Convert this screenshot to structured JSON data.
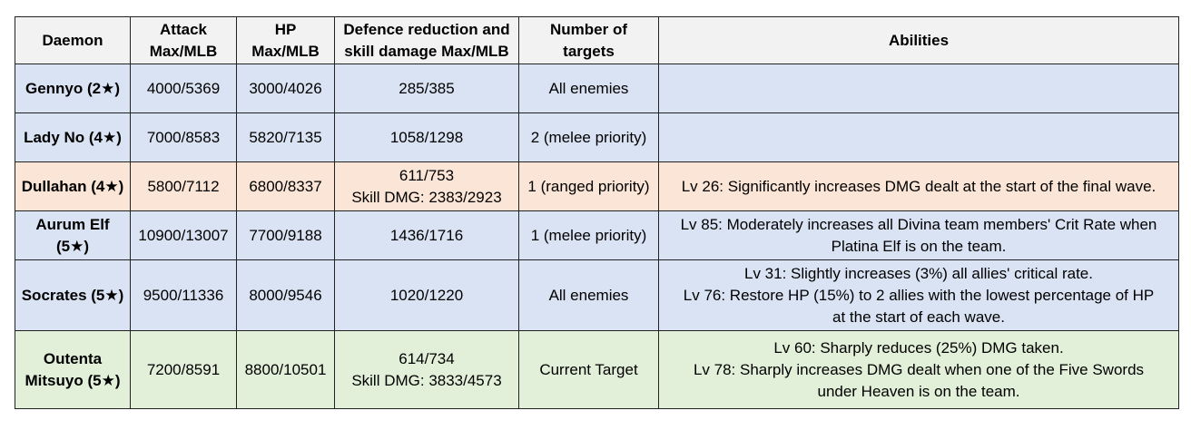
{
  "table": {
    "headers": [
      "Daemon",
      "Attack\nMax/MLB",
      "HP\nMax/MLB",
      "Defence reduction and\nskill damage Max/MLB",
      "Number of\ntargets",
      "Abilities"
    ],
    "rows": [
      {
        "tint": "blue",
        "name": "Gennyo (2★)",
        "attack": "4000/5369",
        "hp": "3000/4026",
        "defence": "285/385",
        "targets": "All enemies",
        "abilities": ""
      },
      {
        "tint": "blue",
        "name": "Lady No (4★)",
        "attack": "7000/8583",
        "hp": "5820/7135",
        "defence": "1058/1298",
        "targets": "2 (melee priority)",
        "abilities": ""
      },
      {
        "tint": "orange",
        "name": "Dullahan (4★)",
        "attack": "5800/7112",
        "hp": "6800/8337",
        "defence": "611/753\nSkill DMG: 2383/2923",
        "targets": "1 (ranged priority)",
        "abilities": "Lv 26: Significantly increases DMG dealt at the start of the final wave."
      },
      {
        "tint": "blue",
        "name": "Aurum Elf\n(5★)",
        "attack": "10900/13007",
        "hp": "7700/9188",
        "defence": "1436/1716",
        "targets": "1 (melee priority)",
        "abilities": "Lv 85: Moderately increases all Divina team members' Crit Rate when\nPlatina Elf is on the team."
      },
      {
        "tint": "blue",
        "name": "Socrates (5★)",
        "attack": "9500/11336",
        "hp": "8000/9546",
        "defence": "1020/1220",
        "targets": "All enemies",
        "abilities": "Lv 31: Slightly increases (3%) all allies' critical rate.\nLv 76: Restore HP (15%) to 2 allies with the lowest percentage of HP\nat the start of each wave."
      },
      {
        "tint": "green",
        "name": "Outenta\nMitsuyo (5★)",
        "attack": "7200/8591",
        "hp": "8800/10501",
        "defence": "614/734\nSkill DMG: 3833/4573",
        "targets": "Current Target",
        "abilities": "Lv 60: Sharply reduces (25%) DMG taken.\nLv 78: Sharply increases DMG dealt when one of the Five Swords\nunder Heaven is on the team."
      }
    ]
  },
  "colors": {
    "header_bg": "#f2f2f2",
    "blue": "#dae3f3",
    "orange": "#fbe5d6",
    "green": "#e2f0d9",
    "border": "#222222"
  }
}
